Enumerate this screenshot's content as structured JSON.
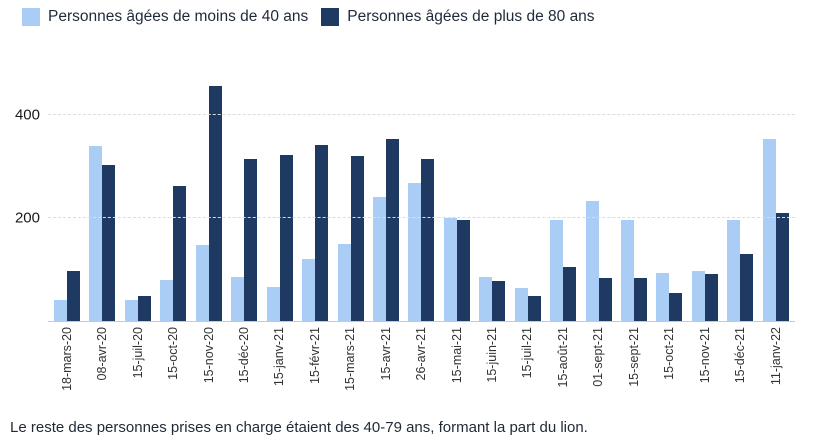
{
  "caption": "Le reste des personnes prises en charge étaient des 40-79 ans, formant la part du lion.",
  "chart_data": {
    "type": "bar",
    "title": "",
    "xlabel": "",
    "ylabel": "",
    "ylim": [
      0,
      500
    ],
    "yticks": [
      200,
      400
    ],
    "grid": "dashed horizontal",
    "legend_position": "top-left",
    "categories": [
      "18-mars-20",
      "08-avr-20",
      "15-juil-20",
      "15-oct-20",
      "15-nov-20",
      "15-déc-20",
      "15-janv-21",
      "15-févr-21",
      "15-mars-21",
      "15-avr-21",
      "26-avr-21",
      "15-mai-21",
      "15-juin-21",
      "15-juil-21",
      "15-août-21",
      "01-sept-21",
      "15-sept-21",
      "15-oct-21",
      "15-nov-21",
      "15-déc-21",
      "11-janv-22"
    ],
    "series": [
      {
        "name": "Personnes âgées de moins de 40 ans",
        "color": "#a9cdf4",
        "values": [
          40,
          340,
          40,
          80,
          148,
          85,
          65,
          120,
          150,
          240,
          268,
          200,
          85,
          63,
          196,
          233,
          196,
          93,
          97,
          196,
          353
        ]
      },
      {
        "name": "Personnes âgées de plus de 80 ans",
        "color": "#1e3a63",
        "values": [
          97,
          303,
          48,
          262,
          455,
          313,
          322,
          342,
          320,
          353,
          314,
          195,
          78,
          48,
          105,
          83,
          83,
          54,
          91,
          130,
          209
        ]
      }
    ]
  }
}
